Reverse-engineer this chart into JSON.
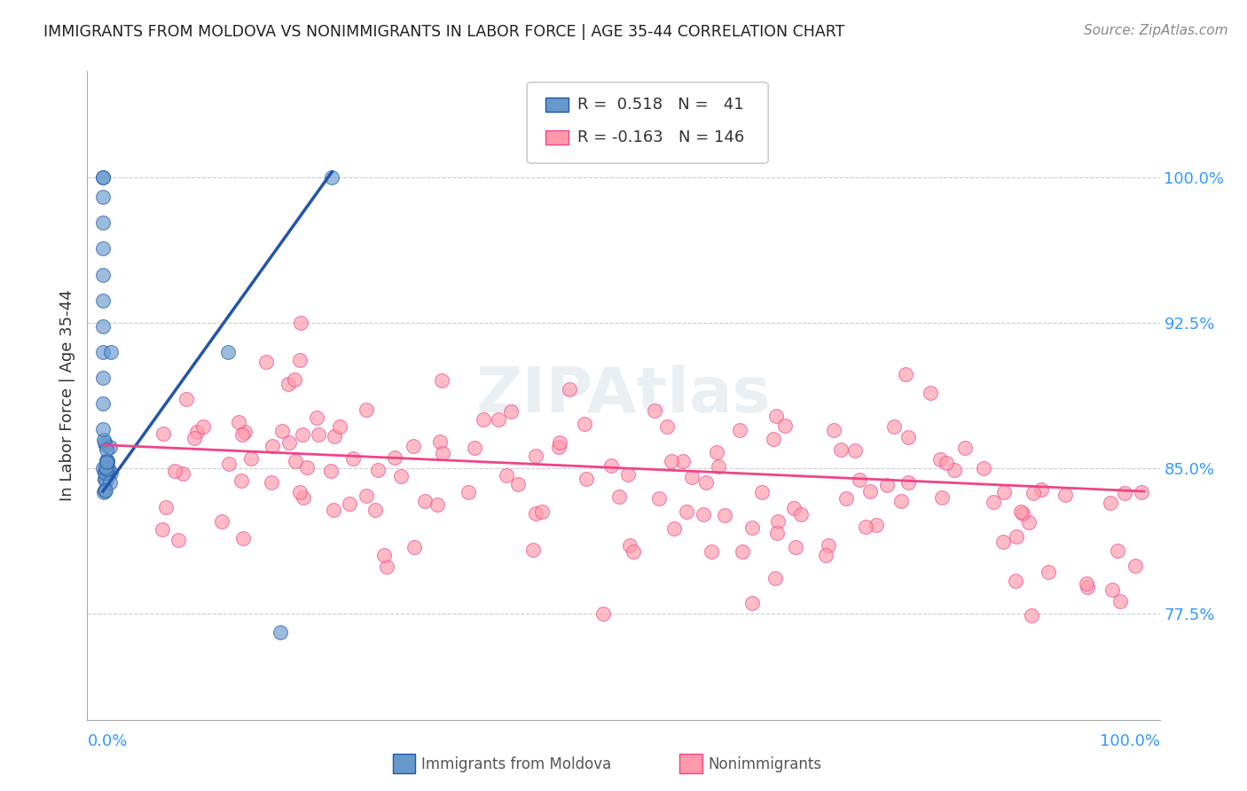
{
  "title": "IMMIGRANTS FROM MOLDOVA VS NONIMMIGRANTS IN LABOR FORCE | AGE 35-44 CORRELATION CHART",
  "source": "Source: ZipAtlas.com",
  "ylabel": "In Labor Force | Age 35-44",
  "ytick_values": [
    0.775,
    0.85,
    0.925,
    1.0
  ],
  "legend_blue_r": "0.518",
  "legend_blue_n": "41",
  "legend_pink_r": "-0.163",
  "legend_pink_n": "146",
  "blue_color": "#6699CC",
  "pink_color": "#FF99AA",
  "blue_line_color": "#2255AA",
  "pink_line_color": "#EE4488",
  "background_color": "#FFFFFF",
  "grid_color": "#CCCCCC",
  "title_color": "#222222",
  "axis_label_color": "#333333",
  "right_tick_color": "#3399FF",
  "bottom_tick_color": "#3399FF"
}
